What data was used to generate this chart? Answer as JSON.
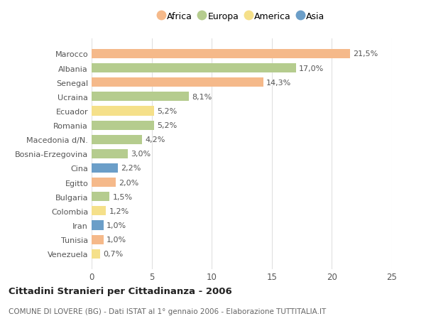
{
  "categories": [
    "Marocco",
    "Albania",
    "Senegal",
    "Ucraina",
    "Ecuador",
    "Romania",
    "Macedonia d/N.",
    "Bosnia-Erzegovina",
    "Cina",
    "Egitto",
    "Bulgaria",
    "Colombia",
    "Iran",
    "Tunisia",
    "Venezuela"
  ],
  "values": [
    21.5,
    17.0,
    14.3,
    8.1,
    5.2,
    5.2,
    4.2,
    3.0,
    2.2,
    2.0,
    1.5,
    1.2,
    1.0,
    1.0,
    0.7
  ],
  "labels": [
    "21,5%",
    "17,0%",
    "14,3%",
    "8,1%",
    "5,2%",
    "5,2%",
    "4,2%",
    "3,0%",
    "2,2%",
    "2,0%",
    "1,5%",
    "1,2%",
    "1,0%",
    "1,0%",
    "0,7%"
  ],
  "continents": [
    "Africa",
    "Europa",
    "Africa",
    "Europa",
    "America",
    "Europa",
    "Europa",
    "Europa",
    "Asia",
    "Africa",
    "Europa",
    "America",
    "Asia",
    "Africa",
    "America"
  ],
  "continent_colors": {
    "Africa": "#F5B98A",
    "Europa": "#B5CC8E",
    "America": "#F5E08A",
    "Asia": "#6B9EC8"
  },
  "legend_order": [
    "Africa",
    "Europa",
    "America",
    "Asia"
  ],
  "title": "Cittadini Stranieri per Cittadinanza - 2006",
  "subtitle": "COMUNE DI LOVERE (BG) - Dati ISTAT al 1° gennaio 2006 - Elaborazione TUTTITALIA.IT",
  "xlim": [
    0,
    25
  ],
  "xticks": [
    0,
    5,
    10,
    15,
    20,
    25
  ],
  "background_color": "#ffffff",
  "bar_height": 0.65,
  "grid_color": "#e0e0e0",
  "label_fontsize": 8,
  "ytick_fontsize": 8,
  "xtick_fontsize": 8.5
}
